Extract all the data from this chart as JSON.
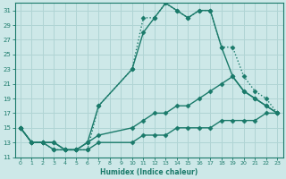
{
  "xlabel": "Humidex (Indice chaleur)",
  "bg_color": "#cde8e8",
  "grid_color": "#b0d4d4",
  "line_color": "#1a7a6a",
  "xlim": [
    -0.5,
    23.5
  ],
  "ylim": [
    11,
    32
  ],
  "yticks": [
    11,
    13,
    15,
    17,
    19,
    21,
    23,
    25,
    27,
    29,
    31
  ],
  "xticks": [
    0,
    1,
    2,
    3,
    4,
    5,
    6,
    7,
    8,
    9,
    10,
    11,
    12,
    13,
    14,
    15,
    16,
    17,
    18,
    19,
    20,
    21,
    22,
    23
  ],
  "series": [
    {
      "x": [
        0,
        1,
        2,
        3,
        4,
        5,
        6,
        7,
        10,
        11,
        12,
        13,
        14,
        15,
        16,
        17,
        18,
        19,
        20,
        21,
        22,
        23
      ],
      "y": [
        15,
        13,
        13,
        12,
        12,
        12,
        12,
        18,
        23,
        30,
        30,
        32,
        31,
        30,
        31,
        31,
        26,
        26,
        22,
        20,
        19,
        17
      ],
      "linestyle": "dotted",
      "marker": "D",
      "markersize": 2.5,
      "linewidth": 1.0
    },
    {
      "x": [
        0,
        1,
        2,
        3,
        4,
        5,
        6,
        7,
        10,
        11,
        12,
        13,
        14,
        15,
        16,
        17,
        18,
        19,
        20,
        21,
        22,
        23
      ],
      "y": [
        15,
        13,
        13,
        12,
        12,
        12,
        13,
        18,
        23,
        28,
        30,
        32,
        31,
        30,
        31,
        31,
        26,
        22,
        20,
        19,
        18,
        17
      ],
      "linestyle": "solid",
      "marker": "D",
      "markersize": 2.5,
      "linewidth": 1.0
    },
    {
      "x": [
        0,
        1,
        2,
        3,
        4,
        5,
        6,
        7,
        10,
        11,
        12,
        13,
        14,
        15,
        16,
        17,
        18,
        19,
        20,
        21,
        22,
        23
      ],
      "y": [
        15,
        13,
        13,
        13,
        12,
        12,
        13,
        14,
        15,
        16,
        17,
        17,
        18,
        18,
        19,
        20,
        21,
        22,
        20,
        19,
        18,
        17
      ],
      "linestyle": "solid",
      "marker": "D",
      "markersize": 2.5,
      "linewidth": 1.0
    },
    {
      "x": [
        0,
        1,
        2,
        3,
        4,
        5,
        6,
        7,
        10,
        11,
        12,
        13,
        14,
        15,
        16,
        17,
        18,
        19,
        20,
        21,
        22,
        23
      ],
      "y": [
        15,
        13,
        13,
        13,
        12,
        12,
        12,
        13,
        13,
        14,
        14,
        14,
        15,
        15,
        15,
        15,
        16,
        16,
        16,
        16,
        17,
        17
      ],
      "linestyle": "solid",
      "marker": "D",
      "markersize": 2.5,
      "linewidth": 1.0
    }
  ]
}
